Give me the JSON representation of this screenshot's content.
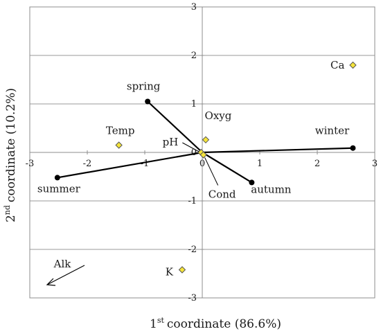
{
  "chart_data": {
    "type": "scatter",
    "xlabel": {
      "main": "coordinate (86.6%)",
      "ordinal": "1",
      "sup": "st"
    },
    "ylabel": {
      "main": "coordinate (10.2%)",
      "ordinal": "2",
      "sup": "nd"
    },
    "xlim": [
      -3,
      3
    ],
    "ylim": [
      -3,
      3
    ],
    "x_ticks": [
      "-3",
      "-2",
      "-1",
      "0",
      "1",
      "2",
      "3"
    ],
    "y_ticks": [
      "3",
      "2",
      "1",
      "0",
      "-1",
      "-2",
      "-3"
    ],
    "grid": "horizontal",
    "seasons": [
      {
        "name": "spring",
        "x": -0.95,
        "y": 1.05
      },
      {
        "name": "winter",
        "x": 2.62,
        "y": 0.09
      },
      {
        "name": "summer",
        "x": -2.52,
        "y": -0.52
      },
      {
        "name": "autumn",
        "x": 0.86,
        "y": -0.62
      }
    ],
    "variables": [
      {
        "name": "Ca",
        "x": 2.62,
        "y": 1.8
      },
      {
        "name": "Oxyg",
        "x": 0.06,
        "y": 0.26
      },
      {
        "name": "Temp",
        "x": -1.45,
        "y": 0.15
      },
      {
        "name": "pH",
        "x": -0.02,
        "y": 0.0
      },
      {
        "name": "Cond",
        "x": 0.02,
        "y": -0.05
      },
      {
        "name": "K",
        "x": -0.35,
        "y": -2.42
      }
    ],
    "arrow": {
      "label": "Alk"
    },
    "colors": {
      "point": "#000000",
      "diamond_fill": "#f5e43a",
      "diamond_stroke": "#555555",
      "grid": "#9a9a9a"
    }
  }
}
